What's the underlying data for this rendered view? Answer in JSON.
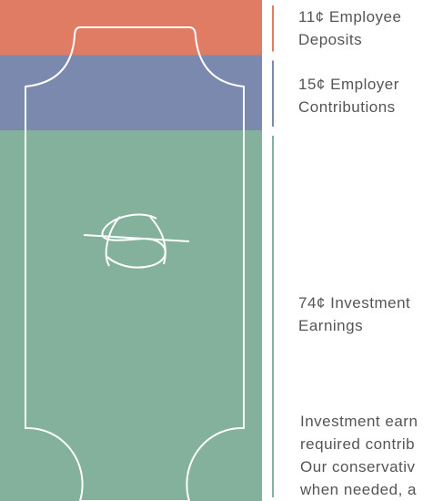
{
  "chart_data": {
    "type": "stacked-column",
    "categories": [
      "Employee Deposits",
      "Employer Contributions",
      "Investment Earnings"
    ],
    "values": [
      11,
      15,
      74
    ],
    "value_labels": [
      "11¢",
      "15¢",
      "74¢"
    ],
    "colors": [
      "#e07b64",
      "#7b89ae",
      "#83b19b"
    ],
    "ylim": [
      0,
      100
    ],
    "note": [
      "Investment earn",
      "required contrib",
      "Our conservativ",
      "when needed, a"
    ]
  }
}
